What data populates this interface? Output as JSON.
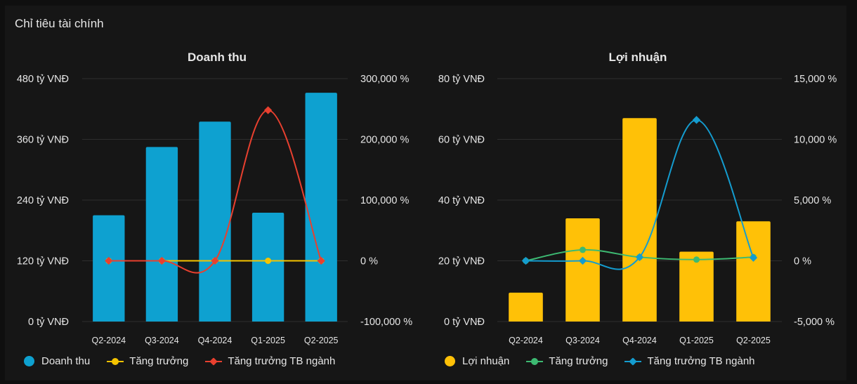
{
  "page_title": "Chỉ tiêu tài chính",
  "chart_data": [
    {
      "type": "bar",
      "title": "Doanh thu",
      "categories": [
        "Q2-2024",
        "Q3-2024",
        "Q4-2024",
        "Q1-2025",
        "Q2-2025"
      ],
      "y_ticks": [
        "0 tỷ VNĐ",
        "120 tỷ VNĐ",
        "240 tỷ VNĐ",
        "360 tỷ VNĐ",
        "480 tỷ VNĐ"
      ],
      "y2_ticks": [
        "-100,000 %",
        "0 %",
        "100,000 %",
        "200,000 %",
        "300,000 %"
      ],
      "ylim": [
        0,
        480
      ],
      "y2lim": [
        -100000,
        300000
      ],
      "series": [
        {
          "name": "Doanh thu",
          "kind": "bar",
          "axis": "left",
          "color": "#0ea1d0",
          "values": [
            210,
            345,
            395,
            215,
            452
          ]
        },
        {
          "name": "Tăng trưởng",
          "kind": "line",
          "axis": "right",
          "color": "#f5c400",
          "values": [
            0,
            0,
            0,
            0,
            0
          ]
        },
        {
          "name": "Tăng trưởng TB ngành",
          "kind": "line",
          "axis": "right",
          "color": "#e8402f",
          "values": [
            0,
            0,
            0,
            248000,
            0
          ]
        }
      ]
    },
    {
      "type": "bar",
      "title": "Lợi nhuận",
      "categories": [
        "Q2-2024",
        "Q3-2024",
        "Q4-2024",
        "Q1-2025",
        "Q2-2025"
      ],
      "y_ticks": [
        "0 tỷ VNĐ",
        "20 tỷ VNĐ",
        "40 tỷ VNĐ",
        "60 tỷ VNĐ",
        "80 tỷ VNĐ"
      ],
      "y2_ticks": [
        "-5,000 %",
        "0 %",
        "5,000 %",
        "10,000 %",
        "15,000 %"
      ],
      "ylim": [
        0,
        80
      ],
      "y2lim": [
        -5000,
        15000
      ],
      "series": [
        {
          "name": "Lợi nhuận",
          "kind": "bar",
          "axis": "left",
          "color": "#ffc107",
          "values": [
            9.5,
            34,
            67,
            23,
            33
          ]
        },
        {
          "name": "Tăng trưởng",
          "kind": "line",
          "axis": "right",
          "color": "#3dba72",
          "values": [
            0,
            900,
            300,
            100,
            300
          ]
        },
        {
          "name": "Tăng trưởng TB ngành",
          "kind": "line",
          "axis": "right",
          "color": "#149ccf",
          "values": [
            0,
            0,
            300,
            11600,
            250
          ]
        }
      ]
    }
  ]
}
